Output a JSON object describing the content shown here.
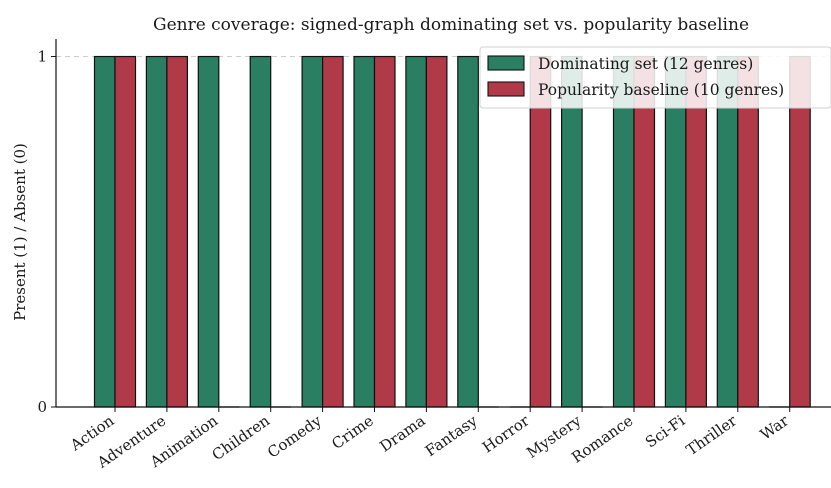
{
  "chart_data": {
    "type": "bar",
    "title": "Genre coverage: signed-graph dominating set vs. popularity baseline",
    "xlabel": "",
    "ylabel": "Present (1) / Absent (0)",
    "ylim": [
      0,
      1.05
    ],
    "yticks": [
      0,
      1
    ],
    "grid": "y-dashed-at-1",
    "legend": "top-right",
    "categories": [
      "Action",
      "Adventure",
      "Animation",
      "Children",
      "Comedy",
      "Crime",
      "Drama",
      "Fantasy",
      "Horror",
      "Mystery",
      "Romance",
      "Sci-Fi",
      "Thriller",
      "War"
    ],
    "series": [
      {
        "name": "Dominating set (12 genres)",
        "color": "#2a7f62",
        "values": [
          1,
          1,
          1,
          1,
          1,
          1,
          1,
          1,
          0,
          1,
          1,
          1,
          1,
          0
        ]
      },
      {
        "name": "Popularity baseline (10 genres)",
        "color": "#b03a48",
        "values": [
          1,
          1,
          0,
          0,
          1,
          1,
          1,
          0,
          1,
          0,
          1,
          1,
          1,
          1
        ]
      }
    ]
  }
}
